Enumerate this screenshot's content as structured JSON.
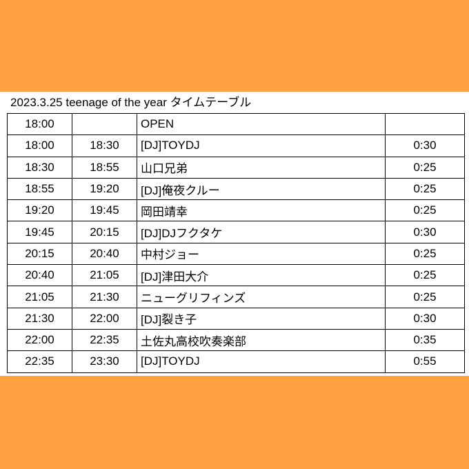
{
  "colors": {
    "background": "#FFA143",
    "sheet": "#FFFFFF",
    "text": "#000000",
    "border": "#000000"
  },
  "title": "2023.3.25 teenage of the year タイムテーブル",
  "rows": [
    {
      "start": "18:00",
      "end": "",
      "act": "OPEN",
      "duration": ""
    },
    {
      "start": "18:00",
      "end": "18:30",
      "act": "[DJ]TOYDJ",
      "duration": "0:30"
    },
    {
      "start": "18:30",
      "end": "18:55",
      "act": "山口兄弟",
      "duration": "0:25"
    },
    {
      "start": "18:55",
      "end": "19:20",
      "act": "[DJ]俺夜クルー",
      "duration": "0:25"
    },
    {
      "start": "19:20",
      "end": "19:45",
      "act": "岡田靖幸",
      "duration": "0:25"
    },
    {
      "start": "19:45",
      "end": "20:15",
      "act": "[DJ]DJフクタケ",
      "duration": "0:30"
    },
    {
      "start": "20:15",
      "end": "20:40",
      "act": "中村ジョー",
      "duration": "0:25"
    },
    {
      "start": "20:40",
      "end": "21:05",
      "act": "[DJ]津田大介",
      "duration": "0:25"
    },
    {
      "start": "21:05",
      "end": "21:30",
      "act": "ニューグリフィンズ",
      "duration": "0:25"
    },
    {
      "start": "21:30",
      "end": "22:00",
      "act": "[DJ]裂き子",
      "duration": "0:30"
    },
    {
      "start": "22:00",
      "end": "22:35",
      "act": "土佐丸高校吹奏楽部",
      "duration": "0:35"
    },
    {
      "start": "22:35",
      "end": "23:30",
      "act": "[DJ]TOYDJ",
      "duration": "0:55"
    }
  ]
}
